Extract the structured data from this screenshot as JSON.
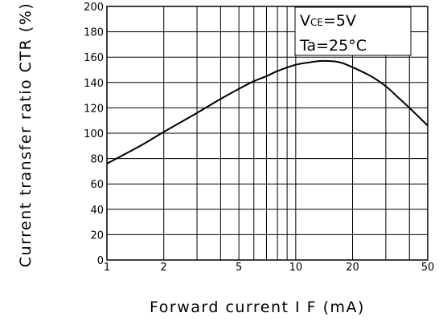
{
  "chart_data": {
    "type": "line",
    "xlabel": "Forward current I F (mA)",
    "ylabel": "Current transfer ratio CTR (%)",
    "xscale": "log",
    "xlim": [
      1,
      50
    ],
    "ylim": [
      0,
      200
    ],
    "x_ticks": [
      1,
      2,
      5,
      10,
      20,
      50
    ],
    "x_tick_labels": [
      "1",
      "2",
      "5",
      "10",
      "20",
      "50"
    ],
    "y_ticks": [
      0,
      20,
      40,
      60,
      80,
      100,
      120,
      140,
      160,
      180,
      200
    ],
    "y_tick_labels": [
      "0",
      "20",
      "40",
      "60",
      "80",
      "100",
      "120",
      "140",
      "160",
      "180",
      "200"
    ],
    "grid": true,
    "annotations": {
      "vce_symbol": "V",
      "vce_subscript": "CE",
      "vce_value": "=5V",
      "ta": "Ta=25°C"
    },
    "series": [
      {
        "x": [
          1,
          1.5,
          2,
          3,
          4,
          5,
          6,
          7,
          8,
          10,
          12,
          14,
          17,
          20,
          25,
          30,
          35,
          40,
          50
        ],
        "y": [
          76,
          90,
          101,
          116,
          127,
          135,
          141,
          145,
          149,
          154,
          156,
          157,
          156,
          152,
          145,
          137,
          128,
          120,
          106
        ]
      }
    ]
  }
}
